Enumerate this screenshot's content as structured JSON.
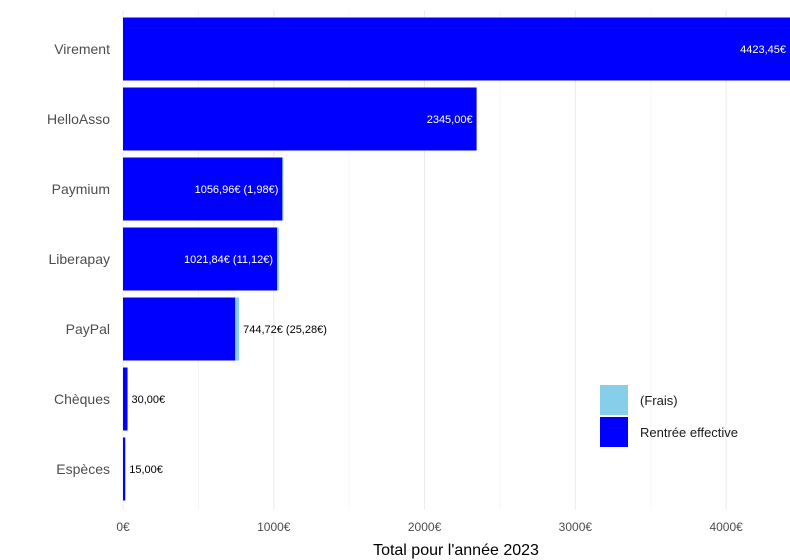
{
  "chart_data": {
    "type": "bar",
    "orientation": "horizontal",
    "stacked": true,
    "categories": [
      "Virement",
      "HelloAsso",
      "Paymium",
      "Liberapay",
      "PayPal",
      "Chèques",
      "Espèces"
    ],
    "series": [
      {
        "name": "Rentrée effective",
        "color": "#0000ff",
        "values": [
          4423.45,
          2345.0,
          1056.96,
          1021.84,
          744.72,
          30.0,
          15.0
        ]
      },
      {
        "name": "(Frais)",
        "color": "#87ceeb",
        "values": [
          0,
          0,
          1.98,
          11.12,
          25.28,
          0,
          0
        ]
      }
    ],
    "bar_labels": [
      "4423,45€",
      "2345,00€",
      "1056,96€ (1,98€)",
      "1021,84€ (11,12€)",
      "744,72€ (25,28€)",
      "30,00€",
      "15,00€"
    ],
    "bar_label_inside": [
      true,
      true,
      true,
      true,
      false,
      false,
      false
    ],
    "xlim": [
      0,
      4423.45
    ],
    "x_ticks": [
      0,
      1000,
      2000,
      3000,
      4000
    ],
    "x_tick_labels": [
      "0€",
      "1000€",
      "2000€",
      "3000€",
      "4000€"
    ],
    "xlabel": "Total pour l'année 2023",
    "ylabel": "",
    "grid": true,
    "legend": {
      "placement": "bottom-right",
      "entries": [
        {
          "label": "(Frais)",
          "color": "#87ceeb"
        },
        {
          "label": "Rentrée effective",
          "color": "#0000ff"
        }
      ]
    }
  }
}
